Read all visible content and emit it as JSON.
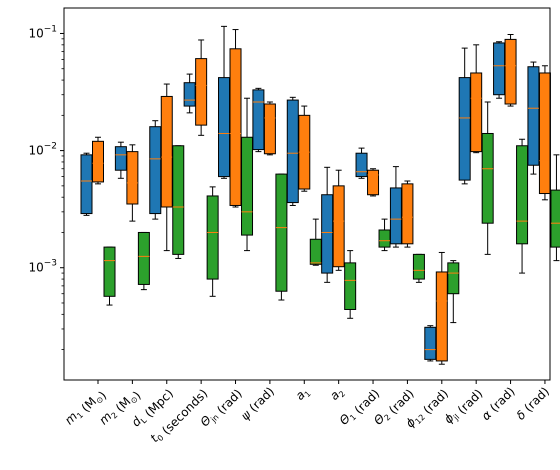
{
  "chart_data": {
    "type": "box",
    "yscale": "log",
    "ylim": [
      0.00011,
      0.165
    ],
    "yticks": [
      {
        "value": 0.001,
        "base": "10",
        "exp": "−3"
      },
      {
        "value": 0.01,
        "base": "10",
        "exp": "−2"
      },
      {
        "value": 0.1,
        "base": "10",
        "exp": "−1"
      }
    ],
    "categories": [
      {
        "main": "m",
        "sub": "1",
        "rest": " (M",
        "rest_sub": "⊙",
        "tail": ")"
      },
      {
        "main": "m",
        "sub": "2",
        "rest": " (M",
        "rest_sub": "⊙",
        "tail": ")"
      },
      {
        "main": "d",
        "sub": "L",
        "rest": " (Mpc)",
        "rest_sub": "",
        "tail": ""
      },
      {
        "main": "t",
        "sub": "0",
        "rest": " (seconds)",
        "rest_sub": "",
        "tail": ""
      },
      {
        "main": "Θ",
        "sub": "jn",
        "rest": " (rad)",
        "rest_sub": "",
        "tail": ""
      },
      {
        "main": "ψ",
        "sub": "",
        "rest": " (rad)",
        "rest_sub": "",
        "tail": ""
      },
      {
        "main": "a",
        "sub": "1",
        "rest": "",
        "rest_sub": "",
        "tail": ""
      },
      {
        "main": "a",
        "sub": "2",
        "rest": "",
        "rest_sub": "",
        "tail": ""
      },
      {
        "main": "Θ",
        "sub": "1",
        "rest": " (rad)",
        "rest_sub": "",
        "tail": ""
      },
      {
        "main": "Θ",
        "sub": "2",
        "rest": " (rad)",
        "rest_sub": "",
        "tail": ""
      },
      {
        "main": "ϕ",
        "sub": "12",
        "rest": " (rad)",
        "rest_sub": "",
        "tail": ""
      },
      {
        "main": "ϕ",
        "sub": "jl",
        "rest": " (rad)",
        "rest_sub": "",
        "tail": ""
      },
      {
        "main": "α",
        "sub": "",
        "rest": " (rad)",
        "rest_sub": "",
        "tail": ""
      },
      {
        "main": "δ",
        "sub": "",
        "rest": " (rad)",
        "rest_sub": "",
        "tail": ""
      }
    ],
    "series": [
      {
        "color": "#1f77b4",
        "boxes": [
          {
            "whislo": 0.0028,
            "q1": 0.0029,
            "med": 0.0055,
            "q3": 0.0092,
            "whishi": 0.0095
          },
          {
            "whislo": 0.0058,
            "q1": 0.0068,
            "med": 0.0092,
            "q3": 0.0108,
            "whishi": 0.0118
          },
          {
            "whislo": 0.0026,
            "q1": 0.0029,
            "med": 0.0085,
            "q3": 0.016,
            "whishi": 0.018
          },
          {
            "whislo": 0.021,
            "q1": 0.024,
            "med": 0.027,
            "q3": 0.038,
            "whishi": 0.045
          },
          {
            "whislo": 0.0058,
            "q1": 0.006,
            "med": 0.014,
            "q3": 0.042,
            "whishi": 0.115
          },
          {
            "whislo": 0.0098,
            "q1": 0.0102,
            "med": 0.026,
            "q3": 0.033,
            "whishi": 0.034
          },
          {
            "whislo": 0.0034,
            "q1": 0.0036,
            "med": 0.0095,
            "q3": 0.027,
            "whishi": 0.0285
          },
          {
            "whislo": 0.00075,
            "q1": 0.0009,
            "med": 0.002,
            "q3": 0.0042,
            "whishi": 0.0072
          },
          {
            "whislo": 0.0058,
            "q1": 0.006,
            "med": 0.0066,
            "q3": 0.0095,
            "whishi": 0.0105
          },
          {
            "whislo": 0.0015,
            "q1": 0.0016,
            "med": 0.0026,
            "q3": 0.0048,
            "whishi": 0.0073
          },
          {
            "whislo": 0.00016,
            "q1": 0.000165,
            "med": 0.0002,
            "q3": 0.00031,
            "whishi": 0.00032
          },
          {
            "whislo": 0.0052,
            "q1": 0.0056,
            "med": 0.019,
            "q3": 0.042,
            "whishi": 0.075
          },
          {
            "whislo": 0.028,
            "q1": 0.03,
            "med": 0.053,
            "q3": 0.083,
            "whishi": 0.085
          },
          {
            "whislo": 0.0063,
            "q1": 0.0075,
            "med": 0.023,
            "q3": 0.052,
            "whishi": 0.057
          }
        ]
      },
      {
        "color": "#ff7f0e",
        "boxes": [
          {
            "whislo": 0.0052,
            "q1": 0.0054,
            "med": 0.0078,
            "q3": 0.012,
            "whishi": 0.013
          },
          {
            "whislo": 0.0025,
            "q1": 0.0035,
            "med": 0.0053,
            "q3": 0.0098,
            "whishi": 0.0112
          },
          {
            "whislo": 0.0014,
            "q1": 0.0033,
            "med": 0.0088,
            "q3": 0.029,
            "whishi": 0.037
          },
          {
            "whislo": 0.0135,
            "q1": 0.0165,
            "med": 0.036,
            "q3": 0.061,
            "whishi": 0.088
          },
          {
            "whislo": 0.0033,
            "q1": 0.0034,
            "med": 0.014,
            "q3": 0.074,
            "whishi": 0.108
          },
          {
            "whislo": 0.0092,
            "q1": 0.0094,
            "med": 0.019,
            "q3": 0.025,
            "whishi": 0.026
          },
          {
            "whislo": 0.0045,
            "q1": 0.0047,
            "med": 0.0097,
            "q3": 0.02,
            "whishi": 0.024
          },
          {
            "whislo": 0.00095,
            "q1": 0.00102,
            "med": 0.0025,
            "q3": 0.005,
            "whishi": 0.0068
          },
          {
            "whislo": 0.0041,
            "q1": 0.0042,
            "med": 0.0062,
            "q3": 0.0068,
            "whishi": 0.007
          },
          {
            "whislo": 0.0015,
            "q1": 0.0016,
            "med": 0.0027,
            "q3": 0.0052,
            "whishi": 0.0055
          },
          {
            "whislo": 0.00015,
            "q1": 0.00016,
            "med": 0.00052,
            "q3": 0.00092,
            "whishi": 0.00135
          },
          {
            "whislo": 0.0096,
            "q1": 0.0098,
            "med": 0.028,
            "q3": 0.046,
            "whishi": 0.08
          },
          {
            "whislo": 0.024,
            "q1": 0.025,
            "med": 0.053,
            "q3": 0.089,
            "whishi": 0.098
          },
          {
            "whislo": 0.0038,
            "q1": 0.0043,
            "med": 0.0082,
            "q3": 0.046,
            "whishi": 0.053
          }
        ]
      },
      {
        "color": "#2ca02c",
        "boxes": [
          {
            "whislo": 0.00048,
            "q1": 0.00057,
            "med": 0.00115,
            "q3": 0.0015,
            "whishi": 0.0015
          },
          {
            "whislo": 0.00065,
            "q1": 0.00072,
            "med": 0.00125,
            "q3": 0.002,
            "whishi": 0.002
          },
          {
            "whislo": 0.0012,
            "q1": 0.0013,
            "med": 0.0033,
            "q3": 0.011,
            "whishi": 0.011
          },
          {
            "whislo": 0.00057,
            "q1": 0.0008,
            "med": 0.002,
            "q3": 0.0041,
            "whishi": 0.0049
          },
          {
            "whislo": 0.0014,
            "q1": 0.0019,
            "med": 0.003,
            "q3": 0.013,
            "whishi": 0.028
          },
          {
            "whislo": 0.00053,
            "q1": 0.00063,
            "med": 0.0022,
            "q3": 0.0063,
            "whishi": 0.0063
          },
          {
            "whislo": 0.00105,
            "q1": 0.00107,
            "med": 0.0011,
            "q3": 0.00175,
            "whishi": 0.0026
          },
          {
            "whislo": 0.00037,
            "q1": 0.00044,
            "med": 0.00078,
            "q3": 0.0011,
            "whishi": 0.0014
          },
          {
            "whislo": 0.0014,
            "q1": 0.0015,
            "med": 0.0017,
            "q3": 0.0021,
            "whishi": 0.0026
          },
          {
            "whislo": 0.00075,
            "q1": 0.0008,
            "med": 0.00095,
            "q3": 0.0013,
            "whishi": 0.0013
          },
          {
            "whislo": 0.00034,
            "q1": 0.0006,
            "med": 0.0009,
            "q3": 0.0011,
            "whishi": 0.00115
          },
          {
            "whislo": 0.0013,
            "q1": 0.0024,
            "med": 0.007,
            "q3": 0.014,
            "whishi": 0.026
          },
          {
            "whislo": 0.0009,
            "q1": 0.0016,
            "med": 0.0025,
            "q3": 0.011,
            "whishi": 0.0125
          },
          {
            "whislo": 0.00115,
            "q1": 0.0015,
            "med": 0.0024,
            "q3": 0.0046,
            "whishi": 0.0092
          }
        ]
      }
    ]
  }
}
